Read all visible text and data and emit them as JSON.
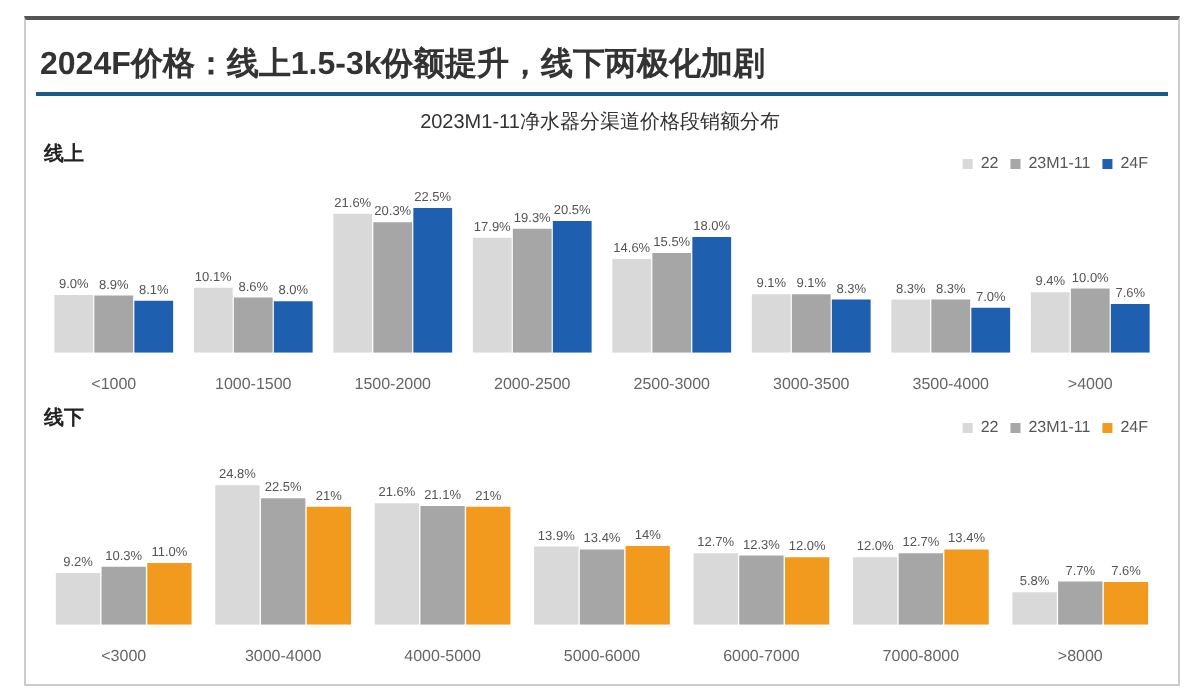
{
  "chart_data": [
    {
      "type": "bar",
      "title": "2024F价格：线上1.5-3k份额提升，线下两极化加剧",
      "subtitle": "2023M1-11净水器分渠道价格段销额分布",
      "annotations": [
        "线上"
      ],
      "legend": "top right",
      "categories": [
        "<1000",
        "1000-1500",
        "1500-2000",
        "2000-2500",
        "2500-3000",
        "3000-3500",
        "3500-4000",
        ">4000"
      ],
      "series": [
        {
          "name": "22",
          "color": "#d9d9d9",
          "values": [
            9.0,
            10.1,
            21.6,
            17.9,
            14.6,
            9.1,
            8.3,
            9.4
          ],
          "value_labels": [
            "9.0%",
            "10.1%",
            "21.6%",
            "17.9%",
            "14.6%",
            "9.1%",
            "8.3%",
            "9.4%"
          ]
        },
        {
          "name": "23M1-11",
          "color": "#a6a6a6",
          "values": [
            8.9,
            8.6,
            20.3,
            19.3,
            15.5,
            9.1,
            8.3,
            10.0
          ],
          "value_labels": [
            "8.9%",
            "8.6%",
            "20.3%",
            "19.3%",
            "15.5%",
            "9.1%",
            "8.3%",
            "10.0%"
          ]
        },
        {
          "name": "24F",
          "color": "#1f5fb0",
          "values": [
            8.1,
            8.0,
            22.5,
            20.5,
            18.0,
            8.3,
            7.0,
            7.6
          ],
          "value_labels": [
            "8.1%",
            "8.0%",
            "22.5%",
            "20.5%",
            "18.0%",
            "8.3%",
            "7.0%",
            "7.6%"
          ]
        }
      ]
    },
    {
      "type": "bar",
      "annotations": [
        "线下"
      ],
      "legend": "top right",
      "categories": [
        "<3000",
        "3000-4000",
        "4000-5000",
        "5000-6000",
        "6000-7000",
        "7000-8000",
        ">8000"
      ],
      "series": [
        {
          "name": "22",
          "color": "#d9d9d9",
          "values": [
            9.2,
            24.8,
            21.6,
            13.9,
            12.7,
            12.0,
            5.8
          ],
          "value_labels": [
            "9.2%",
            "24.8%",
            "21.6%",
            "13.9%",
            "12.7%",
            "12.0%",
            "5.8%"
          ]
        },
        {
          "name": "23M1-11",
          "color": "#a6a6a6",
          "values": [
            10.3,
            22.5,
            21.1,
            13.4,
            12.3,
            12.7,
            7.7
          ],
          "value_labels": [
            "10.3%",
            "22.5%",
            "21.1%",
            "13.4%",
            "12.3%",
            "12.7%",
            "7.7%"
          ]
        },
        {
          "name": "24F",
          "color": "#f29a1e",
          "values": [
            11.0,
            21,
            21,
            14,
            12.0,
            13.4,
            7.6
          ],
          "value_labels": [
            "11.0%",
            "21%",
            "21%",
            "14%",
            "12.0%",
            "13.4%",
            "7.6%"
          ]
        }
      ]
    }
  ]
}
